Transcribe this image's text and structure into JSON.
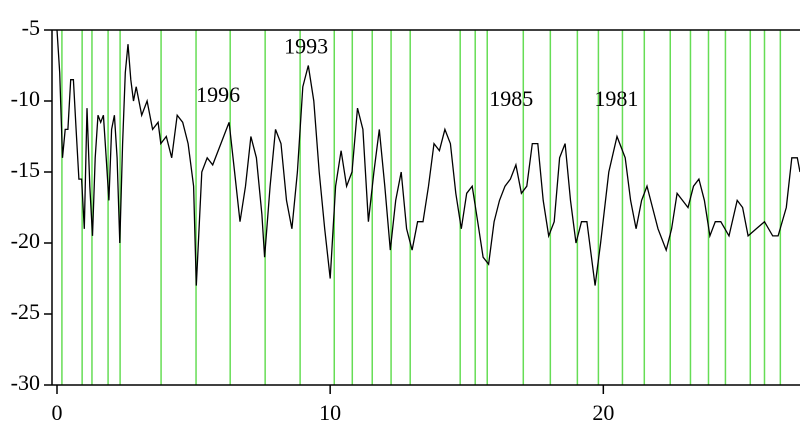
{
  "chart_data": {
    "type": "line",
    "x": [
      0,
      0.1,
      0.2,
      0.3,
      0.4,
      0.5,
      0.6,
      0.7,
      0.8,
      0.9,
      1.0,
      1.1,
      1.2,
      1.3,
      1.4,
      1.5,
      1.6,
      1.7,
      1.8,
      1.9,
      2.0,
      2.1,
      2.2,
      2.3,
      2.4,
      2.5,
      2.6,
      2.7,
      2.8,
      2.9,
      3.1,
      3.3,
      3.5,
      3.7,
      3.8,
      4.0,
      4.2,
      4.4,
      4.6,
      4.8,
      5.0,
      5.1,
      5.3,
      5.5,
      5.7,
      6.0,
      6.3,
      6.5,
      6.7,
      6.9,
      7.1,
      7.3,
      7.5,
      7.6,
      7.8,
      8.0,
      8.2,
      8.4,
      8.6,
      8.8,
      9.0,
      9.2,
      9.4,
      9.6,
      9.8,
      10.0,
      10.2,
      10.4,
      10.6,
      10.8,
      11.0,
      11.2,
      11.4,
      11.6,
      11.8,
      12.0,
      12.2,
      12.4,
      12.6,
      12.8,
      13.0,
      13.2,
      13.4,
      13.6,
      13.8,
      14.0,
      14.2,
      14.4,
      14.6,
      14.8,
      15.0,
      15.2,
      15.4,
      15.6,
      15.8,
      16.0,
      16.2,
      16.4,
      16.6,
      16.8,
      17.0,
      17.2,
      17.4,
      17.6,
      17.8,
      18.0,
      18.2,
      18.4,
      18.6,
      18.8,
      19.0,
      19.2,
      19.4,
      19.7,
      19.9,
      20.2,
      20.5,
      20.8,
      21.0,
      21.2,
      21.4,
      21.6,
      21.8,
      22.0,
      22.3,
      22.5,
      22.7,
      22.9,
      23.1,
      23.3,
      23.5,
      23.7,
      23.9,
      24.1,
      24.3,
      24.6,
      24.9,
      25.1,
      25.3,
      25.6,
      25.9,
      26.2,
      26.4,
      26.7,
      26.9,
      27.1,
      27.2
    ],
    "series": [
      {
        "color": "#000000",
        "values": [
          -5,
          -8,
          -14,
          -12,
          -12,
          -8.5,
          -8.5,
          -12,
          -15.5,
          -15.5,
          -19,
          -10.5,
          -16,
          -19.5,
          -14,
          -11,
          -11.5,
          -11,
          -14,
          -17,
          -12,
          -11,
          -14,
          -20,
          -13,
          -8,
          -6,
          -8.5,
          -10,
          -9,
          -11,
          -10,
          -12,
          -11.5,
          -13,
          -12.5,
          -14,
          -11,
          -11.5,
          -13,
          -16,
          -23,
          -15,
          -14,
          -14.5,
          -13,
          -11.5,
          -15,
          -18.5,
          -16,
          -12.5,
          -14,
          -18,
          -21,
          -16,
          -12,
          -13,
          -17,
          -19,
          -15,
          -9,
          -7.5,
          -10,
          -15,
          -19,
          -22.5,
          -16,
          -13.5,
          -16,
          -15,
          -10.5,
          -12,
          -18.5,
          -15,
          -12,
          -16,
          -20.5,
          -17,
          -15,
          -19,
          -20.5,
          -18.5,
          -18.5,
          -16,
          -13,
          -13.5,
          -12,
          -13,
          -16.5,
          -19,
          -16.5,
          -16,
          -18.5,
          -21,
          -21.5,
          -18.5,
          -17,
          -16,
          -15.5,
          -14.5,
          -16.5,
          -16,
          -13,
          -13,
          -17,
          -19.5,
          -18.5,
          -14,
          -13,
          -17,
          -20,
          -18.5,
          -18.5,
          -23,
          -20,
          -15,
          -12.5,
          -14,
          -17,
          -19,
          -17,
          -16,
          -17.5,
          -19,
          -20.5,
          -19,
          -16.5,
          -17,
          -17.5,
          -16,
          -15.5,
          -17,
          -19.5,
          -18.5,
          -18.5,
          -19.5,
          -17,
          -17.5,
          -19.5,
          -19,
          -18.5,
          -19.5,
          -19.5,
          -17.5,
          -14,
          -14,
          -15
        ]
      }
    ],
    "vlines": {
      "color": "#66dd55",
      "x": [
        0.18,
        0.92,
        1.28,
        1.87,
        2.31,
        3.81,
        5.09,
        6.34,
        7.62,
        8.9,
        10.15,
        10.81,
        11.54,
        12.23,
        12.93,
        14.76,
        15.31,
        15.75,
        17.07,
        18.06,
        19.05,
        19.82,
        20.7,
        21.5,
        22.45,
        23.19,
        23.85,
        24.47,
        25.38,
        25.9,
        26.48
      ]
    },
    "annotations": [
      {
        "text": "1996",
        "x": 5.9,
        "y": -9.7
      },
      {
        "text": "1993",
        "x": 9.12,
        "y": -6.3
      },
      {
        "text": "1985",
        "x": 16.63,
        "y": -10
      },
      {
        "text": "1981",
        "x": 20.48,
        "y": -10
      }
    ],
    "xlim": [
      0,
      27.2
    ],
    "ylim": [
      -30,
      -5
    ],
    "xticks": [
      0,
      10,
      20
    ],
    "yticks": [
      -5,
      -10,
      -15,
      -20,
      -25,
      -30
    ]
  }
}
